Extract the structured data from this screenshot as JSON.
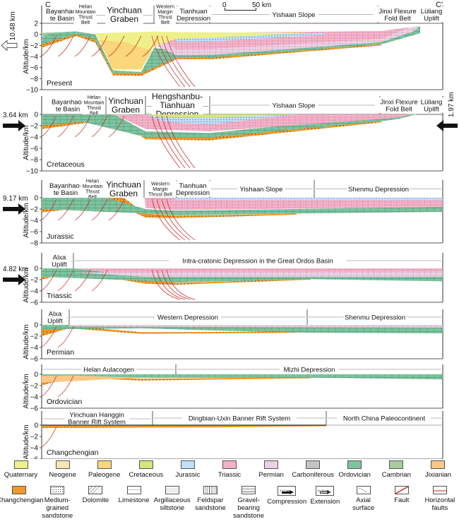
{
  "figure": {
    "section_start_label": "C",
    "section_end_label": "C'",
    "scale_bar": {
      "start": "0",
      "end": "50 km"
    },
    "y_axis_label": "Altitude/km"
  },
  "panels": [
    {
      "name": "Present",
      "label": "Present",
      "y_ticks": [
        "2",
        "0",
        "−2",
        "−4",
        "−6",
        "−8",
        "−10"
      ],
      "y_range": [
        -10,
        2
      ],
      "left_arrow": {
        "type": "extension",
        "label": "10.48 km"
      },
      "right_arrow": null,
      "units": [
        {
          "label": "Bayanhao-\nte Basin"
        },
        {
          "label": "Helan\nMountain\nThrust\nBelt"
        },
        {
          "label": "Yinchuan\nGraben"
        },
        {
          "label": "Western\nMargin\nThrust\nBelt"
        },
        {
          "label": "Tianhuan\nDepression"
        },
        {
          "label": "Yishaan Slope"
        },
        {
          "label": "Jinxi Flexure\nFold Belt"
        },
        {
          "label": "Lüliang\nUplift"
        }
      ]
    },
    {
      "name": "Cretaceous",
      "label": "Cretaceous",
      "y_ticks": [
        "0",
        "−2",
        "−4",
        "−6",
        "−8",
        "−10"
      ],
      "y_range": [
        -10,
        0
      ],
      "left_arrow": {
        "type": "compression",
        "label": "3.64 km"
      },
      "right_arrow": {
        "type": "compression",
        "label": "1.97 km"
      },
      "units": [
        {
          "label": "Bayanhao-\nte Basin"
        },
        {
          "label": "Helan\nMountain\nThrust\nBelt"
        },
        {
          "label": "Yinchuan\nGraben"
        },
        {
          "label": "Hengshanbu-\nTianhuan\nDepression"
        },
        {
          "label": "Yishaan Slope"
        },
        {
          "label": "Jinxi Flexure\nFold Belt"
        },
        {
          "label": "Lüliang\nUplift"
        }
      ]
    },
    {
      "name": "Jurassic",
      "label": "Jurassic",
      "y_ticks": [
        "0",
        "−2",
        "−4",
        "−6",
        "−8"
      ],
      "y_range": [
        -8,
        0
      ],
      "left_arrow": {
        "type": "compression",
        "label": "9.17 km"
      },
      "right_arrow": null,
      "units": [
        {
          "label": "Bayanhao-\nte Basin"
        },
        {
          "label": "Helan\nMountain\nThrust\nBelt"
        },
        {
          "label": "Yinchuan\nGraben"
        },
        {
          "label": "Western\nMargin\nThrust Belt"
        },
        {
          "label": "Tianhuan\nDepression"
        },
        {
          "label": "Yishaan Slope"
        },
        {
          "label": "Shenmu Depression"
        }
      ]
    },
    {
      "name": "Triassic",
      "label": "Triassic",
      "y_ticks": [
        "0",
        "−2",
        "−4",
        "−6"
      ],
      "y_range": [
        -6,
        0
      ],
      "left_arrow": {
        "type": "compression",
        "label": "4.82 km"
      },
      "right_arrow": null,
      "units": [
        {
          "label": "Alxa\nUplift"
        },
        {
          "label": "Intra-cratonic Depression in the Great Ordos Basin"
        }
      ]
    },
    {
      "name": "Permian",
      "label": "Permian",
      "y_ticks": [
        "0",
        "−2",
        "−4",
        "−6"
      ],
      "y_range": [
        -6,
        0
      ],
      "left_arrow": null,
      "right_arrow": null,
      "units": [
        {
          "label": "Alxa\nUplift"
        },
        {
          "label": "Western Depression"
        },
        {
          "label": "Shenmu Depression"
        }
      ]
    },
    {
      "name": "Ordovician",
      "label": "Ordovician",
      "y_ticks": [
        "0",
        "−2",
        "−4",
        "−6"
      ],
      "y_range": [
        -6,
        0
      ],
      "left_arrow": null,
      "right_arrow": null,
      "units": [
        {
          "label": "Helan Aulacogen"
        },
        {
          "label": "Mizhi Depression"
        }
      ]
    },
    {
      "name": "Changchengian",
      "label": "Changchengian",
      "y_ticks": [
        "0",
        "−2",
        "−4",
        "−6"
      ],
      "y_range": [
        -6,
        0
      ],
      "left_arrow": null,
      "right_arrow": null,
      "units": [
        {
          "label": "Yinchuan Hanggin\nBanner Rift System"
        },
        {
          "label": "Dingbian-Uxin Banner Rift System"
        },
        {
          "label": "North China Paleocontinent"
        }
      ]
    }
  ],
  "legend": {
    "row1": [
      {
        "label": "Quaternary",
        "color": "#eef08a"
      },
      {
        "label": "Neogene",
        "color": "#fbe6b0"
      },
      {
        "label": "Paleogene",
        "color": "#fbd67a"
      },
      {
        "label": "Cretaceous",
        "color": "#d6e67a"
      },
      {
        "label": "Jurassic",
        "color": "#bfe0fb"
      },
      {
        "label": "Triassic",
        "color": "#f4b0c8"
      },
      {
        "label": "Permian",
        "color": "#ecd0e4"
      },
      {
        "label": "Carboniferous",
        "color": "#c4c4c4"
      },
      {
        "label": "Ordovician",
        "color": "#7cc4a0"
      },
      {
        "label": "Cambrian",
        "color": "#a8cca0"
      },
      {
        "label": "Jixianian",
        "color": "#fbc888"
      }
    ],
    "row2": [
      {
        "label": "Changchengian",
        "kind": "swatch",
        "color": "#f09828"
      },
      {
        "label": "Medium-\ngrained\nsandstone",
        "kind": "medium-sandstone"
      },
      {
        "label": "Dolomite",
        "kind": "dolomite"
      },
      {
        "label": "Limestone",
        "kind": "limestone"
      },
      {
        "label": "Argillaceous\nsiltstone",
        "kind": "siltstone"
      },
      {
        "label": "Feldspar\nsandstone",
        "kind": "feldspar"
      },
      {
        "label": "Gravel-\nbearing\nsandstone",
        "kind": "gravel"
      },
      {
        "label": "Compression",
        "kind": "compression",
        "sample": "9.17 km"
      },
      {
        "label": "Extension",
        "kind": "extension",
        "sample": "10.48 km"
      },
      {
        "label": "Axial\nsurface",
        "kind": "axial"
      },
      {
        "label": "Fault",
        "kind": "fault"
      },
      {
        "label": "Horizontal\nfaults",
        "kind": "hfault"
      }
    ]
  },
  "colors": {
    "fault": "#d81e1e",
    "frame": "#333333",
    "quaternary": "#eef08a",
    "neogene": "#fbe6b0",
    "paleogene": "#fbd67a",
    "cretaceous": "#d6e67a",
    "jurassic": "#bfe0fb",
    "triassic": "#f4b0c8",
    "permian": "#ecd0e4",
    "ordovician": "#7cc4a0",
    "cambrian": "#a8cca0",
    "jixianian": "#fbc888",
    "changchengian": "#f09828"
  }
}
